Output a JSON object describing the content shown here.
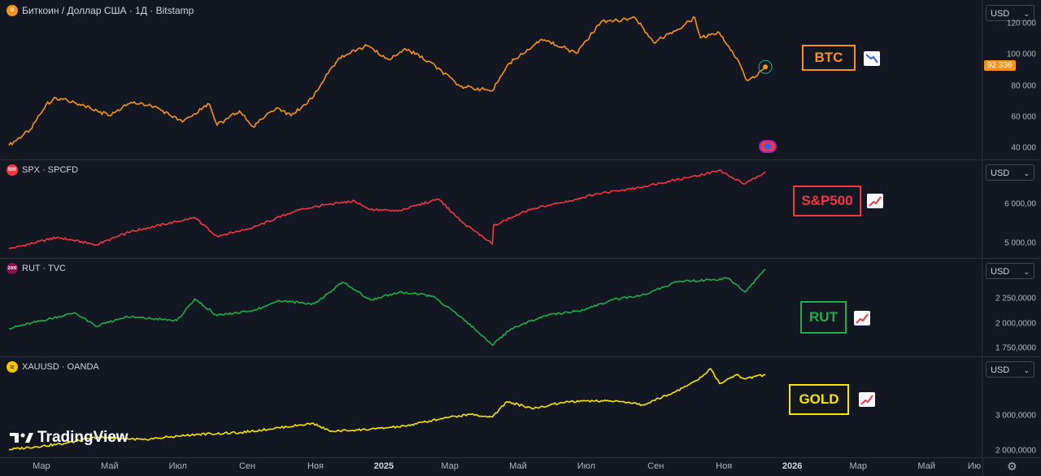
{
  "chart_data": [
    {
      "type": "line",
      "title": "Биткоин / Доллар США · 1Д · Bitstamp",
      "series": [
        {
          "name": "BTC"
        }
      ],
      "x": [
        "2024-02-01",
        "2024-02-20",
        "2024-03-05",
        "2024-03-14",
        "2024-04-01",
        "2024-04-20",
        "2024-05-01",
        "2024-05-20",
        "2024-06-10",
        "2024-07-05",
        "2024-07-29",
        "2024-08-05",
        "2024-08-25",
        "2024-09-06",
        "2024-09-27",
        "2024-10-10",
        "2024-10-29",
        "2024-11-12",
        "2024-11-22",
        "2024-12-17",
        "2025-01-05",
        "2025-01-20",
        "2025-02-10",
        "2025-03-10",
        "2025-04-08",
        "2025-04-22",
        "2025-05-22",
        "2025-06-10",
        "2025-06-22",
        "2025-07-14",
        "2025-08-14",
        "2025-08-30",
        "2025-09-20",
        "2025-10-06",
        "2025-10-11",
        "2025-10-28",
        "2025-11-14",
        "2025-11-21",
        "2025-12-01",
        "2025-12-08"
      ],
      "values": [
        42000,
        52000,
        68000,
        72500,
        69000,
        64000,
        61000,
        69500,
        67000,
        57000,
        68500,
        55000,
        64000,
        54000,
        66000,
        61000,
        72000,
        88000,
        98000,
        106000,
        97000,
        104000,
        96000,
        80000,
        77000,
        94000,
        110000,
        105000,
        101000,
        121000,
        123500,
        108000,
        116000,
        124000,
        111000,
        114000,
        96000,
        84000,
        87000,
        92336
      ],
      "ylim": [
        35000,
        130000
      ],
      "y_ticks": [
        "40 000",
        "60 000",
        "80 000",
        "100 000",
        "120 000"
      ],
      "last_price": "92 336",
      "annotation": "BTC",
      "color": "#f7931a"
    },
    {
      "type": "line",
      "title": "SPX · SPCFD",
      "series": [
        {
          "name": "S&P500"
        }
      ],
      "x": [
        "2024-02-01",
        "2024-03-15",
        "2024-04-19",
        "2024-05-20",
        "2024-07-16",
        "2024-08-05",
        "2024-09-06",
        "2024-10-15",
        "2024-11-11",
        "2024-12-06",
        "2024-12-20",
        "2025-01-13",
        "2025-02-19",
        "2025-03-13",
        "2025-04-04",
        "2025-04-08",
        "2025-04-09",
        "2025-05-13",
        "2025-06-10",
        "2025-07-10",
        "2025-08-10",
        "2025-09-15",
        "2025-10-09",
        "2025-10-28",
        "2025-11-06",
        "2025-11-20",
        "2025-12-08"
      ],
      "values": [
        4850,
        5150,
        4960,
        5300,
        5660,
        5180,
        5400,
        5850,
        6000,
        6090,
        5870,
        5830,
        6140,
        5520,
        5070,
        4980,
        5460,
        5890,
        6050,
        6280,
        6400,
        6620,
        6750,
        6890,
        6720,
        6540,
        6850
      ],
      "ylim": [
        4700,
        7000
      ],
      "y_ticks": [
        "5 000,00",
        "6 000,00"
      ],
      "annotation": "S&P500",
      "color": "#f23645"
    },
    {
      "type": "line",
      "title": "RUT · TVC",
      "series": [
        {
          "name": "RUT"
        }
      ],
      "x": [
        "2024-02-01",
        "2024-03-31",
        "2024-04-19",
        "2024-05-15",
        "2024-06-30",
        "2024-07-16",
        "2024-08-05",
        "2024-09-06",
        "2024-09-30",
        "2024-10-31",
        "2024-11-25",
        "2024-12-20",
        "2025-01-15",
        "2025-02-13",
        "2025-03-13",
        "2025-04-08",
        "2025-04-25",
        "2025-05-25",
        "2025-06-30",
        "2025-07-23",
        "2025-08-18",
        "2025-09-22",
        "2025-10-15",
        "2025-11-05",
        "2025-11-20",
        "2025-12-08"
      ],
      "values": [
        1950,
        2110,
        1970,
        2070,
        2030,
        2250,
        2080,
        2130,
        2230,
        2200,
        2420,
        2240,
        2320,
        2280,
        2050,
        1780,
        1950,
        2080,
        2140,
        2240,
        2280,
        2430,
        2440,
        2460,
        2320,
        2550
      ],
      "ylim": [
        1700,
        2600
      ],
      "y_ticks": [
        "1 750,0000",
        "2 000,0000",
        "2 250,0000"
      ],
      "annotation": "RUT",
      "color": "#22ab4a"
    },
    {
      "type": "line",
      "title": "XAUUSD · OANDA",
      "series": [
        {
          "name": "GOLD"
        }
      ],
      "x": [
        "2024-02-01",
        "2024-03-21",
        "2024-04-20",
        "2024-05-31",
        "2024-07-17",
        "2024-08-25",
        "2024-10-30",
        "2024-11-14",
        "2024-12-20",
        "2025-01-20",
        "2025-02-24",
        "2025-03-20",
        "2025-04-08",
        "2025-04-21",
        "2025-05-15",
        "2025-06-13",
        "2025-07-23",
        "2025-08-20",
        "2025-09-15",
        "2025-10-08",
        "2025-10-20",
        "2025-10-28",
        "2025-11-12",
        "2025-11-20",
        "2025-12-08"
      ],
      "values": [
        2030,
        2200,
        2390,
        2320,
        2470,
        2520,
        2790,
        2560,
        2620,
        2710,
        2950,
        3050,
        2980,
        3420,
        3220,
        3430,
        3440,
        3330,
        3650,
        4040,
        4380,
        3950,
        4200,
        4080,
        4210
      ],
      "ylim": [
        1900,
        4500
      ],
      "y_ticks": [
        "2 000,0000",
        "3 000,0000"
      ],
      "annotation": "GOLD",
      "color": "#f7e600"
    }
  ],
  "time_axis": {
    "labels": [
      "Мар",
      "Май",
      "Июл",
      "Сен",
      "Ноя",
      "2025",
      "Мар",
      "Май",
      "Июл",
      "Сен",
      "Ноя",
      "2026",
      "Мар",
      "Май",
      "Ию"
    ],
    "bold": [
      "2025",
      "2026"
    ]
  },
  "currency_selector": "USD",
  "symbol_icons": [
    "B",
    "500",
    "2000",
    "≈"
  ],
  "brand": "TradingView"
}
